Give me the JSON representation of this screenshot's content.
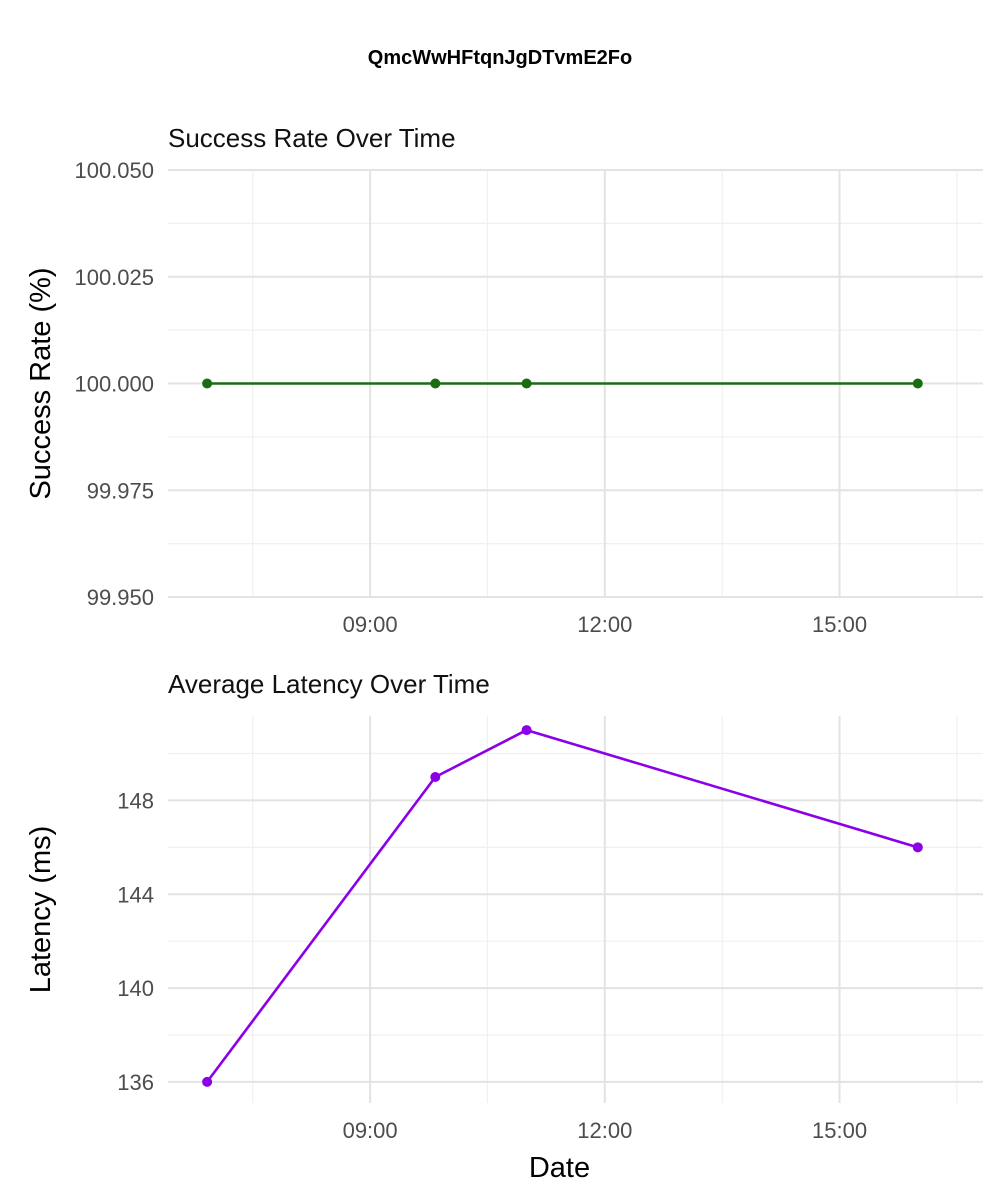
{
  "title": "QmcWwHFtqnJgDTvmE2Fo",
  "chart_data": [
    {
      "type": "line",
      "title": "Success Rate Over Time",
      "xlabel": "",
      "ylabel": "Success Rate (%)",
      "x": [
        "06:55",
        "09:50",
        "11:00",
        "16:00"
      ],
      "series": [
        {
          "values": [
            100.0,
            100.0,
            100.0,
            100.0
          ],
          "color": "#1b6b12"
        }
      ],
      "xlim": [
        "06:25",
        "16:50"
      ],
      "ylim": [
        99.95,
        100.05
      ],
      "x_ticks": [
        "09:00",
        "12:00",
        "15:00"
      ],
      "y_ticks": [
        "99.950",
        "99.975",
        "100.000",
        "100.025",
        "100.050"
      ],
      "grid": true
    },
    {
      "type": "line",
      "title": "Average Latency Over Time",
      "xlabel": "Date",
      "ylabel": "Latency (ms)",
      "x": [
        "06:55",
        "09:50",
        "11:00",
        "16:00"
      ],
      "series": [
        {
          "values": [
            136,
            149,
            151,
            146
          ],
          "color": "#8b00e8"
        }
      ],
      "xlim": [
        "06:25",
        "16:50"
      ],
      "ylim": [
        135.1,
        151.6
      ],
      "x_ticks": [
        "09:00",
        "12:00",
        "15:00"
      ],
      "y_ticks": [
        "136",
        "140",
        "144",
        "148"
      ],
      "grid": true
    }
  ]
}
